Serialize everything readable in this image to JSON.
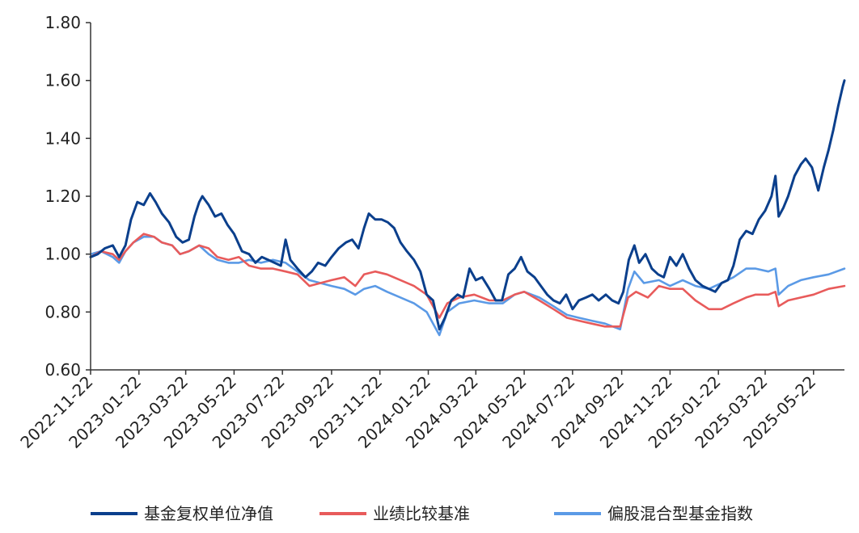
{
  "chart_data": {
    "type": "line",
    "title": "",
    "xlabel": "",
    "ylabel": "",
    "x_ticks": [
      "2022-11-22",
      "2023-01-22",
      "2023-03-22",
      "2023-05-22",
      "2023-07-22",
      "2023-09-22",
      "2023-11-22",
      "2024-01-22",
      "2024-03-22",
      "2024-05-22",
      "2024-07-22",
      "2024-09-22",
      "2024-11-22",
      "2025-01-22",
      "2025-03-22",
      "2025-05-22"
    ],
    "x_range": [
      "2022-11-22",
      "2025-06-30"
    ],
    "ylim": [
      0.6,
      1.8
    ],
    "y_ticks": [
      "0.60",
      "0.80",
      "1.00",
      "1.20",
      "1.40",
      "1.60",
      "1.80"
    ],
    "grid": false,
    "legend": "bottom",
    "series": [
      {
        "name": "基金复权单位净值",
        "color": "#0b3f8c",
        "points": [
          [
            "2022-11-22",
            0.99
          ],
          [
            "2022-12-01",
            1.0
          ],
          [
            "2022-12-10",
            1.02
          ],
          [
            "2022-12-20",
            1.03
          ],
          [
            "2022-12-28",
            0.99
          ],
          [
            "2023-01-05",
            1.03
          ],
          [
            "2023-01-12",
            1.12
          ],
          [
            "2023-01-20",
            1.18
          ],
          [
            "2023-01-28",
            1.17
          ],
          [
            "2023-02-05",
            1.21
          ],
          [
            "2023-02-12",
            1.18
          ],
          [
            "2023-02-20",
            1.14
          ],
          [
            "2023-03-01",
            1.11
          ],
          [
            "2023-03-10",
            1.06
          ],
          [
            "2023-03-18",
            1.04
          ],
          [
            "2023-03-26",
            1.05
          ],
          [
            "2023-04-02",
            1.13
          ],
          [
            "2023-04-08",
            1.18
          ],
          [
            "2023-04-12",
            1.2
          ],
          [
            "2023-04-20",
            1.17
          ],
          [
            "2023-04-28",
            1.13
          ],
          [
            "2023-05-06",
            1.14
          ],
          [
            "2023-05-14",
            1.1
          ],
          [
            "2023-05-22",
            1.07
          ],
          [
            "2023-06-01",
            1.01
          ],
          [
            "2023-06-10",
            1.0
          ],
          [
            "2023-06-18",
            0.97
          ],
          [
            "2023-06-26",
            0.99
          ],
          [
            "2023-07-04",
            0.98
          ],
          [
            "2023-07-12",
            0.97
          ],
          [
            "2023-07-20",
            0.96
          ],
          [
            "2023-07-26",
            1.05
          ],
          [
            "2023-08-01",
            0.98
          ],
          [
            "2023-08-10",
            0.95
          ],
          [
            "2023-08-20",
            0.92
          ],
          [
            "2023-08-28",
            0.94
          ],
          [
            "2023-09-05",
            0.97
          ],
          [
            "2023-09-14",
            0.96
          ],
          [
            "2023-09-22",
            0.99
          ],
          [
            "2023-10-01",
            1.02
          ],
          [
            "2023-10-10",
            1.04
          ],
          [
            "2023-10-18",
            1.05
          ],
          [
            "2023-10-26",
            1.02
          ],
          [
            "2023-11-02",
            1.09
          ],
          [
            "2023-11-08",
            1.14
          ],
          [
            "2023-11-16",
            1.12
          ],
          [
            "2023-11-24",
            1.12
          ],
          [
            "2023-12-02",
            1.11
          ],
          [
            "2023-12-10",
            1.09
          ],
          [
            "2023-12-18",
            1.04
          ],
          [
            "2023-12-26",
            1.01
          ],
          [
            "2024-01-04",
            0.98
          ],
          [
            "2024-01-12",
            0.94
          ],
          [
            "2024-01-20",
            0.86
          ],
          [
            "2024-01-28",
            0.84
          ],
          [
            "2024-02-05",
            0.74
          ],
          [
            "2024-02-12",
            0.78
          ],
          [
            "2024-02-20",
            0.84
          ],
          [
            "2024-02-28",
            0.86
          ],
          [
            "2024-03-06",
            0.85
          ],
          [
            "2024-03-14",
            0.95
          ],
          [
            "2024-03-22",
            0.91
          ],
          [
            "2024-03-30",
            0.92
          ],
          [
            "2024-04-08",
            0.88
          ],
          [
            "2024-04-16",
            0.84
          ],
          [
            "2024-04-24",
            0.84
          ],
          [
            "2024-05-02",
            0.93
          ],
          [
            "2024-05-10",
            0.95
          ],
          [
            "2024-05-18",
            0.99
          ],
          [
            "2024-05-26",
            0.94
          ],
          [
            "2024-06-04",
            0.92
          ],
          [
            "2024-06-12",
            0.89
          ],
          [
            "2024-06-20",
            0.86
          ],
          [
            "2024-06-28",
            0.84
          ],
          [
            "2024-07-06",
            0.83
          ],
          [
            "2024-07-14",
            0.86
          ],
          [
            "2024-07-22",
            0.81
          ],
          [
            "2024-07-30",
            0.84
          ],
          [
            "2024-08-08",
            0.85
          ],
          [
            "2024-08-16",
            0.86
          ],
          [
            "2024-08-24",
            0.84
          ],
          [
            "2024-09-02",
            0.86
          ],
          [
            "2024-09-10",
            0.84
          ],
          [
            "2024-09-18",
            0.83
          ],
          [
            "2024-09-24",
            0.87
          ],
          [
            "2024-10-01",
            0.98
          ],
          [
            "2024-10-08",
            1.03
          ],
          [
            "2024-10-14",
            0.97
          ],
          [
            "2024-10-22",
            1.0
          ],
          [
            "2024-10-30",
            0.95
          ],
          [
            "2024-11-07",
            0.93
          ],
          [
            "2024-11-14",
            0.92
          ],
          [
            "2024-11-22",
            0.99
          ],
          [
            "2024-11-30",
            0.96
          ],
          [
            "2024-12-08",
            1.0
          ],
          [
            "2024-12-16",
            0.95
          ],
          [
            "2024-12-24",
            0.91
          ],
          [
            "2025-01-02",
            0.89
          ],
          [
            "2025-01-10",
            0.88
          ],
          [
            "2025-01-18",
            0.87
          ],
          [
            "2025-01-26",
            0.9
          ],
          [
            "2025-02-03",
            0.91
          ],
          [
            "2025-02-10",
            0.96
          ],
          [
            "2025-02-18",
            1.05
          ],
          [
            "2025-02-26",
            1.08
          ],
          [
            "2025-03-06",
            1.07
          ],
          [
            "2025-03-14",
            1.12
          ],
          [
            "2025-03-22",
            1.15
          ],
          [
            "2025-03-30",
            1.2
          ],
          [
            "2025-04-04",
            1.27
          ],
          [
            "2025-04-08",
            1.13
          ],
          [
            "2025-04-14",
            1.16
          ],
          [
            "2025-04-20",
            1.2
          ],
          [
            "2025-04-28",
            1.27
          ],
          [
            "2025-05-06",
            1.31
          ],
          [
            "2025-05-12",
            1.33
          ],
          [
            "2025-05-20",
            1.3
          ],
          [
            "2025-05-28",
            1.22
          ],
          [
            "2025-06-04",
            1.3
          ],
          [
            "2025-06-10",
            1.36
          ],
          [
            "2025-06-16",
            1.43
          ],
          [
            "2025-06-22",
            1.51
          ],
          [
            "2025-06-28",
            1.58
          ],
          [
            "2025-06-30",
            1.6
          ]
        ]
      },
      {
        "name": "业绩比较基准",
        "color": "#e85b5b",
        "points": [
          [
            "2022-11-22",
            0.99
          ],
          [
            "2022-12-05",
            1.01
          ],
          [
            "2022-12-20",
            1.0
          ],
          [
            "2022-12-28",
            0.98
          ],
          [
            "2023-01-05",
            1.01
          ],
          [
            "2023-01-15",
            1.04
          ],
          [
            "2023-01-28",
            1.07
          ],
          [
            "2023-02-10",
            1.06
          ],
          [
            "2023-02-20",
            1.04
          ],
          [
            "2023-03-05",
            1.03
          ],
          [
            "2023-03-15",
            1.0
          ],
          [
            "2023-03-26",
            1.01
          ],
          [
            "2023-04-08",
            1.03
          ],
          [
            "2023-04-20",
            1.02
          ],
          [
            "2023-05-01",
            0.99
          ],
          [
            "2023-05-15",
            0.98
          ],
          [
            "2023-05-28",
            0.99
          ],
          [
            "2023-06-10",
            0.96
          ],
          [
            "2023-06-25",
            0.95
          ],
          [
            "2023-07-10",
            0.95
          ],
          [
            "2023-07-26",
            0.94
          ],
          [
            "2023-08-10",
            0.93
          ],
          [
            "2023-08-25",
            0.89
          ],
          [
            "2023-09-08",
            0.9
          ],
          [
            "2023-09-22",
            0.91
          ],
          [
            "2023-10-08",
            0.92
          ],
          [
            "2023-10-22",
            0.89
          ],
          [
            "2023-11-02",
            0.93
          ],
          [
            "2023-11-16",
            0.94
          ],
          [
            "2023-12-01",
            0.93
          ],
          [
            "2023-12-18",
            0.91
          ],
          [
            "2024-01-04",
            0.89
          ],
          [
            "2024-01-20",
            0.86
          ],
          [
            "2024-02-05",
            0.78
          ],
          [
            "2024-02-15",
            0.83
          ],
          [
            "2024-03-01",
            0.85
          ],
          [
            "2024-03-20",
            0.86
          ],
          [
            "2024-04-08",
            0.84
          ],
          [
            "2024-04-25",
            0.84
          ],
          [
            "2024-05-10",
            0.86
          ],
          [
            "2024-05-22",
            0.87
          ],
          [
            "2024-06-10",
            0.84
          ],
          [
            "2024-06-28",
            0.81
          ],
          [
            "2024-07-15",
            0.78
          ],
          [
            "2024-07-30",
            0.77
          ],
          [
            "2024-08-15",
            0.76
          ],
          [
            "2024-09-01",
            0.75
          ],
          [
            "2024-09-20",
            0.75
          ],
          [
            "2024-09-30",
            0.85
          ],
          [
            "2024-10-10",
            0.87
          ],
          [
            "2024-10-25",
            0.85
          ],
          [
            "2024-11-08",
            0.89
          ],
          [
            "2024-11-22",
            0.88
          ],
          [
            "2024-12-08",
            0.88
          ],
          [
            "2024-12-24",
            0.84
          ],
          [
            "2025-01-10",
            0.81
          ],
          [
            "2025-01-26",
            0.81
          ],
          [
            "2025-02-10",
            0.83
          ],
          [
            "2025-02-26",
            0.85
          ],
          [
            "2025-03-10",
            0.86
          ],
          [
            "2025-03-26",
            0.86
          ],
          [
            "2025-04-04",
            0.87
          ],
          [
            "2025-04-08",
            0.82
          ],
          [
            "2025-04-20",
            0.84
          ],
          [
            "2025-05-06",
            0.85
          ],
          [
            "2025-05-22",
            0.86
          ],
          [
            "2025-06-10",
            0.88
          ],
          [
            "2025-06-30",
            0.89
          ]
        ]
      },
      {
        "name": "偏股混合型基金指数",
        "color": "#5b9ae6",
        "points": [
          [
            "2022-11-22",
            1.0
          ],
          [
            "2022-12-05",
            1.01
          ],
          [
            "2022-12-20",
            0.99
          ],
          [
            "2022-12-28",
            0.97
          ],
          [
            "2023-01-05",
            1.01
          ],
          [
            "2023-01-15",
            1.04
          ],
          [
            "2023-01-28",
            1.06
          ],
          [
            "2023-02-10",
            1.06
          ],
          [
            "2023-02-20",
            1.04
          ],
          [
            "2023-03-05",
            1.03
          ],
          [
            "2023-03-15",
            1.0
          ],
          [
            "2023-03-26",
            1.01
          ],
          [
            "2023-04-08",
            1.03
          ],
          [
            "2023-04-20",
            1.0
          ],
          [
            "2023-05-01",
            0.98
          ],
          [
            "2023-05-15",
            0.97
          ],
          [
            "2023-05-28",
            0.97
          ],
          [
            "2023-06-10",
            0.98
          ],
          [
            "2023-06-25",
            0.97
          ],
          [
            "2023-07-10",
            0.98
          ],
          [
            "2023-07-26",
            0.97
          ],
          [
            "2023-08-10",
            0.94
          ],
          [
            "2023-08-25",
            0.91
          ],
          [
            "2023-09-08",
            0.9
          ],
          [
            "2023-09-22",
            0.89
          ],
          [
            "2023-10-08",
            0.88
          ],
          [
            "2023-10-22",
            0.86
          ],
          [
            "2023-11-02",
            0.88
          ],
          [
            "2023-11-16",
            0.89
          ],
          [
            "2023-12-01",
            0.87
          ],
          [
            "2023-12-18",
            0.85
          ],
          [
            "2024-01-04",
            0.83
          ],
          [
            "2024-01-20",
            0.8
          ],
          [
            "2024-02-05",
            0.72
          ],
          [
            "2024-02-15",
            0.8
          ],
          [
            "2024-03-01",
            0.83
          ],
          [
            "2024-03-20",
            0.84
          ],
          [
            "2024-04-08",
            0.83
          ],
          [
            "2024-04-25",
            0.83
          ],
          [
            "2024-05-10",
            0.86
          ],
          [
            "2024-05-22",
            0.87
          ],
          [
            "2024-06-10",
            0.85
          ],
          [
            "2024-06-28",
            0.82
          ],
          [
            "2024-07-15",
            0.79
          ],
          [
            "2024-07-30",
            0.78
          ],
          [
            "2024-08-15",
            0.77
          ],
          [
            "2024-09-01",
            0.76
          ],
          [
            "2024-09-20",
            0.74
          ],
          [
            "2024-09-30",
            0.88
          ],
          [
            "2024-10-08",
            0.94
          ],
          [
            "2024-10-20",
            0.9
          ],
          [
            "2024-11-08",
            0.91
          ],
          [
            "2024-11-22",
            0.89
          ],
          [
            "2024-12-08",
            0.91
          ],
          [
            "2024-12-24",
            0.89
          ],
          [
            "2025-01-10",
            0.88
          ],
          [
            "2025-01-26",
            0.9
          ],
          [
            "2025-02-10",
            0.92
          ],
          [
            "2025-02-26",
            0.95
          ],
          [
            "2025-03-10",
            0.95
          ],
          [
            "2025-03-26",
            0.94
          ],
          [
            "2025-04-04",
            0.95
          ],
          [
            "2025-04-08",
            0.86
          ],
          [
            "2025-04-20",
            0.89
          ],
          [
            "2025-05-06",
            0.91
          ],
          [
            "2025-05-22",
            0.92
          ],
          [
            "2025-06-10",
            0.93
          ],
          [
            "2025-06-30",
            0.95
          ]
        ]
      }
    ]
  }
}
